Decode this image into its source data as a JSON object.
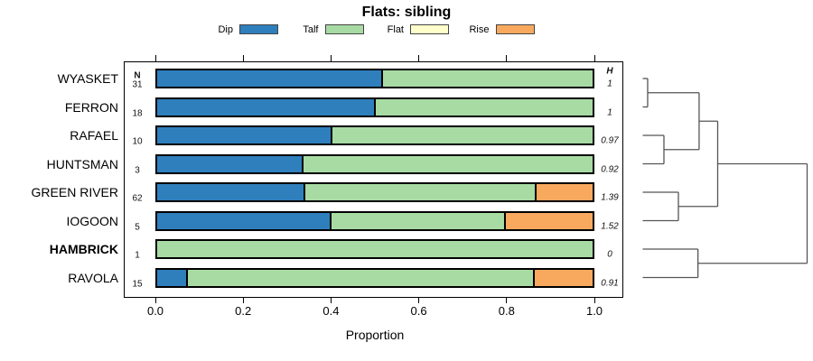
{
  "title": "Flats: sibling",
  "legend": {
    "items": [
      {
        "label": "Dip",
        "color": "#2f7fbd"
      },
      {
        "label": "Talf",
        "color": "#a8dba3"
      },
      {
        "label": "Flat",
        "color": "#ffffcc"
      },
      {
        "label": "Rise",
        "color": "#f9a95e"
      }
    ]
  },
  "columns": {
    "n_header": "N",
    "h_header": "H"
  },
  "axis": {
    "label": "Proportion",
    "ticks": [
      {
        "label": "0.0",
        "value": 0.0
      },
      {
        "label": "0.2",
        "value": 0.2
      },
      {
        "label": "0.4",
        "value": 0.4
      },
      {
        "label": "0.6",
        "value": 0.6
      },
      {
        "label": "0.8",
        "value": 0.8
      },
      {
        "label": "1.0",
        "value": 1.0
      }
    ]
  },
  "chart_data": {
    "type": "bar",
    "stacked": true,
    "orientation": "horizontal",
    "title": "Flats: sibling",
    "xlabel": "Proportion",
    "xlim": [
      0,
      1
    ],
    "grid": false,
    "legend_position": "top",
    "series_names": [
      "Dip",
      "Talf",
      "Flat",
      "Rise"
    ],
    "categories": [
      "WYASKET",
      "FERRON",
      "RAFAEL",
      "HUNTSMAN",
      "GREEN RIVER",
      "IOGOON",
      "HAMBRICK",
      "RAVOLA"
    ],
    "rows": [
      {
        "label": "WYASKET",
        "bold": false,
        "n": "31",
        "h": "1",
        "segments": [
          {
            "name": "Dip",
            "value": 0.516
          },
          {
            "name": "Talf",
            "value": 0.484
          }
        ]
      },
      {
        "label": "FERRON",
        "bold": false,
        "n": "18",
        "h": "1",
        "segments": [
          {
            "name": "Dip",
            "value": 0.5
          },
          {
            "name": "Talf",
            "value": 0.5
          }
        ]
      },
      {
        "label": "RAFAEL",
        "bold": false,
        "n": "10",
        "h": "0.97",
        "segments": [
          {
            "name": "Dip",
            "value": 0.4
          },
          {
            "name": "Talf",
            "value": 0.6
          }
        ]
      },
      {
        "label": "HUNTSMAN",
        "bold": false,
        "n": "3",
        "h": "0.92",
        "segments": [
          {
            "name": "Dip",
            "value": 0.333
          },
          {
            "name": "Talf",
            "value": 0.667
          }
        ]
      },
      {
        "label": "GREEN RIVER",
        "bold": false,
        "n": "62",
        "h": "1.39",
        "segments": [
          {
            "name": "Dip",
            "value": 0.339
          },
          {
            "name": "Talf",
            "value": 0.532
          },
          {
            "name": "Rise",
            "value": 0.129
          }
        ]
      },
      {
        "label": "IOGOON",
        "bold": false,
        "n": "5",
        "h": "1.52",
        "segments": [
          {
            "name": "Dip",
            "value": 0.4
          },
          {
            "name": "Talf",
            "value": 0.4
          },
          {
            "name": "Rise",
            "value": 0.2
          }
        ]
      },
      {
        "label": "HAMBRICK",
        "bold": true,
        "n": "1",
        "h": "0",
        "segments": [
          {
            "name": "Talf",
            "value": 1.0
          }
        ]
      },
      {
        "label": "RAVOLA",
        "bold": false,
        "n": "15",
        "h": "0.91",
        "segments": [
          {
            "name": "Dip",
            "value": 0.067
          },
          {
            "name": "Talf",
            "value": 0.8
          },
          {
            "name": "Rise",
            "value": 0.133
          }
        ]
      }
    ],
    "dendrogram": {
      "height": 1.0,
      "children": [
        {
          "height": 0.456,
          "children": [
            {
              "height": 0.343,
              "children": [
                {
                  "height": 0.03,
                  "children": [
                    {
                      "leaf": "WYASKET"
                    },
                    {
                      "leaf": "FERRON"
                    }
                  ]
                },
                {
                  "height": 0.129,
                  "children": [
                    {
                      "leaf": "RAFAEL"
                    },
                    {
                      "leaf": "HUNTSMAN"
                    }
                  ]
                }
              ]
            },
            {
              "height": 0.217,
              "children": [
                {
                  "leaf": "GREEN RIVER"
                },
                {
                  "leaf": "IOGOON"
                }
              ]
            }
          ]
        },
        {
          "height": 0.336,
          "children": [
            {
              "leaf": "HAMBRICK"
            },
            {
              "leaf": "RAVOLA"
            }
          ]
        }
      ]
    }
  }
}
